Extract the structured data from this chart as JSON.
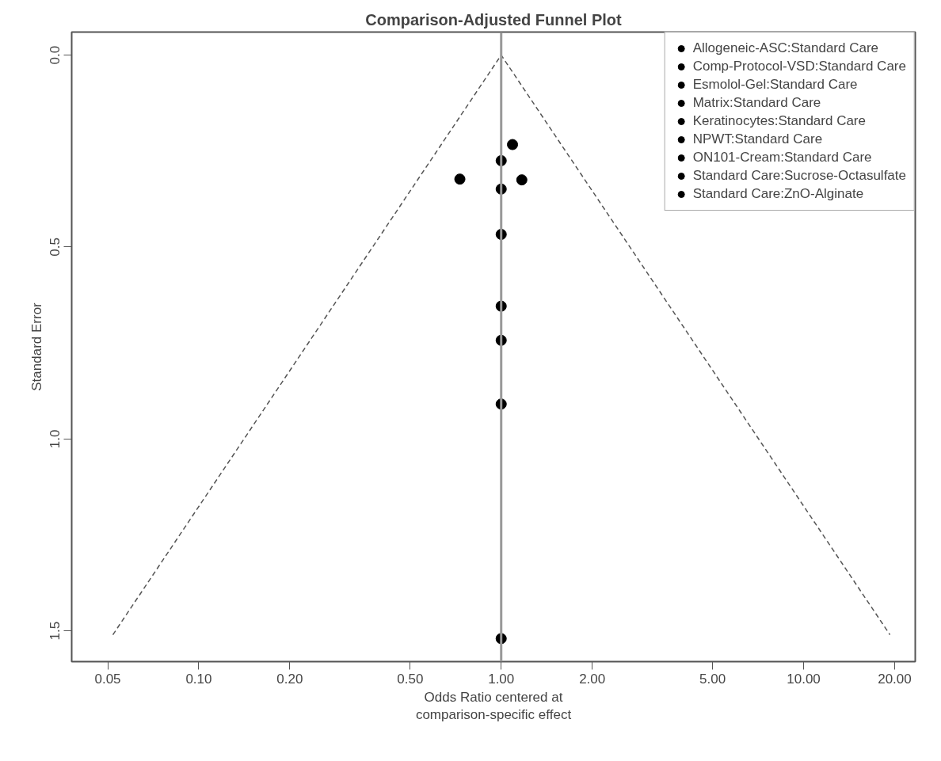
{
  "chart_data": {
    "type": "scatter",
    "title": "Comparison-Adjusted Funnel Plot",
    "xlabel": "Odds Ratio centered at\ncomparison-specific effect",
    "ylabel": "Standard Error",
    "log": "x",
    "grid": false,
    "legend": "top right",
    "marker": "circle",
    "xlim": [
      0.038,
      23.4
    ],
    "ylim": [
      1.58,
      -0.06
    ],
    "xticks": [
      {
        "value": 0.05,
        "label": "0.05"
      },
      {
        "value": 0.1,
        "label": "0.10"
      },
      {
        "value": 0.2,
        "label": "0.20"
      },
      {
        "value": 0.5,
        "label": "0.50"
      },
      {
        "value": 1,
        "label": "1.00"
      },
      {
        "value": 2,
        "label": "2.00"
      },
      {
        "value": 5,
        "label": "5.00"
      },
      {
        "value": 10,
        "label": "10.00"
      },
      {
        "value": 20,
        "label": "20.00"
      }
    ],
    "yticks": [
      {
        "value": 0,
        "label": "0.0"
      },
      0.5,
      {
        "value": 1,
        "label": "1.0"
      },
      1.5
    ],
    "ref_lines": [
      {
        "axis": "x",
        "value": 1,
        "color": "#999999",
        "line_style": "solid"
      }
    ],
    "series": [
      {
        "name": "Allogeneic-ASC:Standard Care",
        "color": "#000000",
        "x": [
          1.09
        ],
        "values": [
          0.233
        ]
      },
      {
        "name": "Comp-Protocol-VSD:Standard Care",
        "color": "#000000",
        "x": [
          1.0
        ],
        "values": [
          0.275
        ]
      },
      {
        "name": "Esmolol-Gel:Standard Care",
        "color": "#000000",
        "x": [
          0.73
        ],
        "values": [
          0.323
        ]
      },
      {
        "name": "Matrix:Standard Care",
        "color": "#000000",
        "x": [
          1.17
        ],
        "values": [
          0.325
        ]
      },
      {
        "name": "Keratinocytes:Standard Care",
        "color": "#000000",
        "x": [
          1.0
        ],
        "values": [
          0.349
        ]
      },
      {
        "name": "NPWT:Standard Care",
        "color": "#000000",
        "x": [
          1.0
        ],
        "values": [
          0.467
        ]
      },
      {
        "name": "ON101-Cream:Standard Care",
        "color": "#000000",
        "x": [
          1.0
        ],
        "values": [
          0.654
        ]
      },
      {
        "name": "Standard Care:Sucrose-Octasulfate",
        "color": "#000000",
        "x": [
          1.0
        ],
        "values": [
          0.743
        ]
      },
      {
        "name": "Standard Care:ZnO-Alginate",
        "color": "#000000",
        "x": [
          1.0,
          1.0
        ],
        "values": [
          0.909,
          1.52
        ]
      },
      {
        "type": "line",
        "line_style": "dashed",
        "marker": "none",
        "color": "#555555",
        "x": [
          0.052,
          1.0,
          19.3
        ],
        "values": [
          1.51,
          0.0,
          1.51
        ]
      }
    ]
  }
}
